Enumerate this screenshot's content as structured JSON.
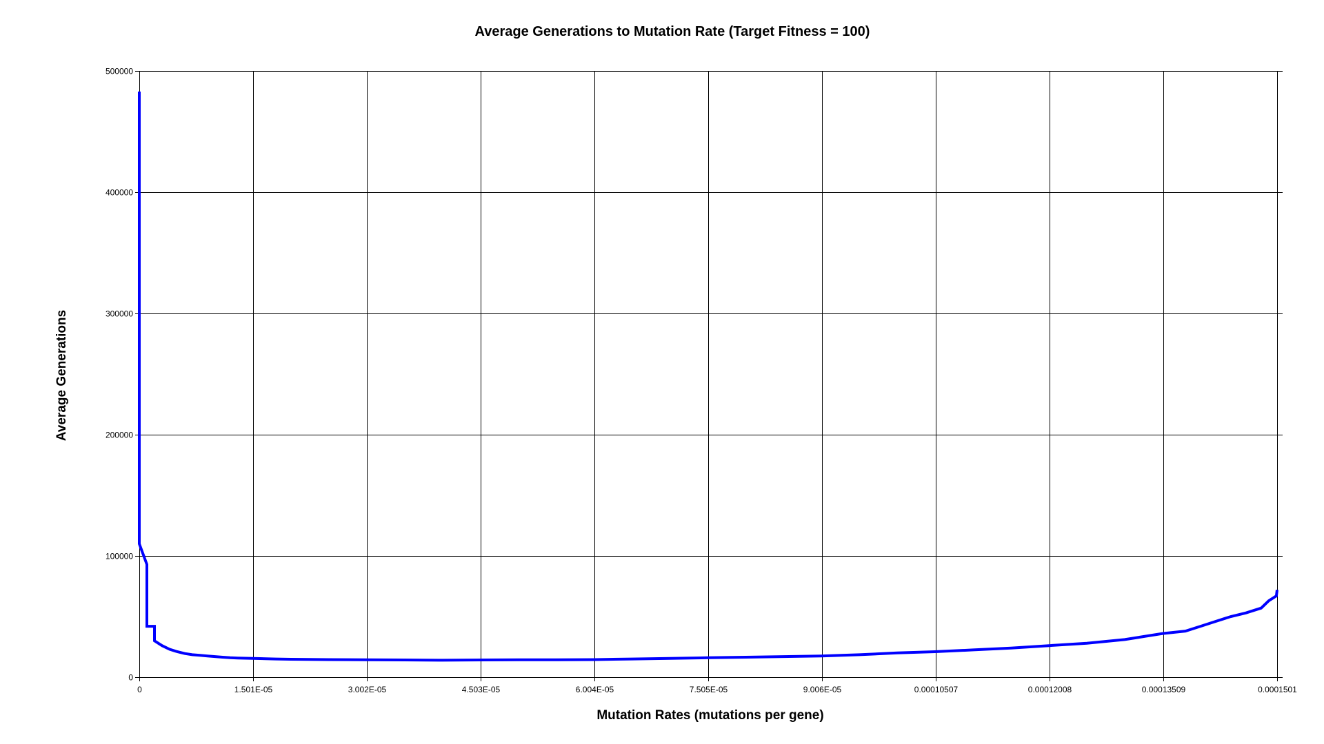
{
  "chart_data": {
    "type": "line",
    "title": "Average Generations to Mutation Rate (Target Fitness = 100)",
    "xlabel": "Mutation Rates (mutations per gene)",
    "ylabel": "Average Generations",
    "xlim": [
      0,
      0.0001501
    ],
    "ylim": [
      0,
      500000
    ],
    "x_ticks": [
      {
        "value": 0,
        "label": "0"
      },
      {
        "value": 1.501e-05,
        "label": "1.501E-05"
      },
      {
        "value": 3.002e-05,
        "label": "3.002E-05"
      },
      {
        "value": 4.503e-05,
        "label": "4.503E-05"
      },
      {
        "value": 6.004e-05,
        "label": "6.004E-05"
      },
      {
        "value": 7.505e-05,
        "label": "7.505E-05"
      },
      {
        "value": 9.006e-05,
        "label": "9.006E-05"
      },
      {
        "value": 0.00010507,
        "label": "0.00010507"
      },
      {
        "value": 0.00012008,
        "label": "0.00012008"
      },
      {
        "value": 0.00013509,
        "label": "0.00013509"
      },
      {
        "value": 0.0001501,
        "label": "0.0001501"
      }
    ],
    "y_ticks": [
      {
        "value": 0,
        "label": "0"
      },
      {
        "value": 100000,
        "label": "100000"
      },
      {
        "value": 200000,
        "label": "200000"
      },
      {
        "value": 300000,
        "label": "300000"
      },
      {
        "value": 400000,
        "label": "400000"
      },
      {
        "value": 500000,
        "label": "500000"
      }
    ],
    "grid": true,
    "line_color": "#0000ff",
    "series": [
      {
        "x": [
          0,
          0,
          1e-06,
          1e-06,
          2e-06,
          2e-06,
          3e-06,
          4e-06,
          5e-06,
          6e-06,
          7e-06,
          8e-06,
          9e-06,
          1e-05,
          1.1e-05,
          1.2e-05,
          1.3e-05,
          1.5e-05,
          1.8e-05,
          2e-05,
          2.5e-05,
          3e-05,
          3.5e-05,
          4e-05,
          4.5e-05,
          5e-05,
          5.5e-05,
          6e-05,
          6.5e-05,
          7e-05,
          7.5e-05,
          8e-05,
          8.5e-05,
          9e-05,
          9.5e-05,
          0.0001,
          0.000105,
          0.00011,
          0.000115,
          0.00012,
          0.000125,
          0.00013,
          0.000135,
          0.000138,
          0.00014,
          0.000142,
          0.000144,
          0.000146,
          0.000148,
          0.000149,
          0.00015,
          0.0001501
        ],
        "y": [
          483000,
          110000,
          93000,
          42000,
          42000,
          30000,
          26000,
          23000,
          21000,
          19500,
          18500,
          18000,
          17500,
          17000,
          16500,
          16000,
          15800,
          15500,
          15000,
          14800,
          14500,
          14300,
          14200,
          14000,
          14200,
          14300,
          14400,
          14500,
          15000,
          15500,
          16000,
          16500,
          17000,
          17500,
          18500,
          20000,
          21000,
          22500,
          24000,
          26000,
          28000,
          31000,
          36000,
          38000,
          42000,
          46000,
          50000,
          53000,
          57000,
          63000,
          67000,
          72000
        ]
      }
    ]
  }
}
